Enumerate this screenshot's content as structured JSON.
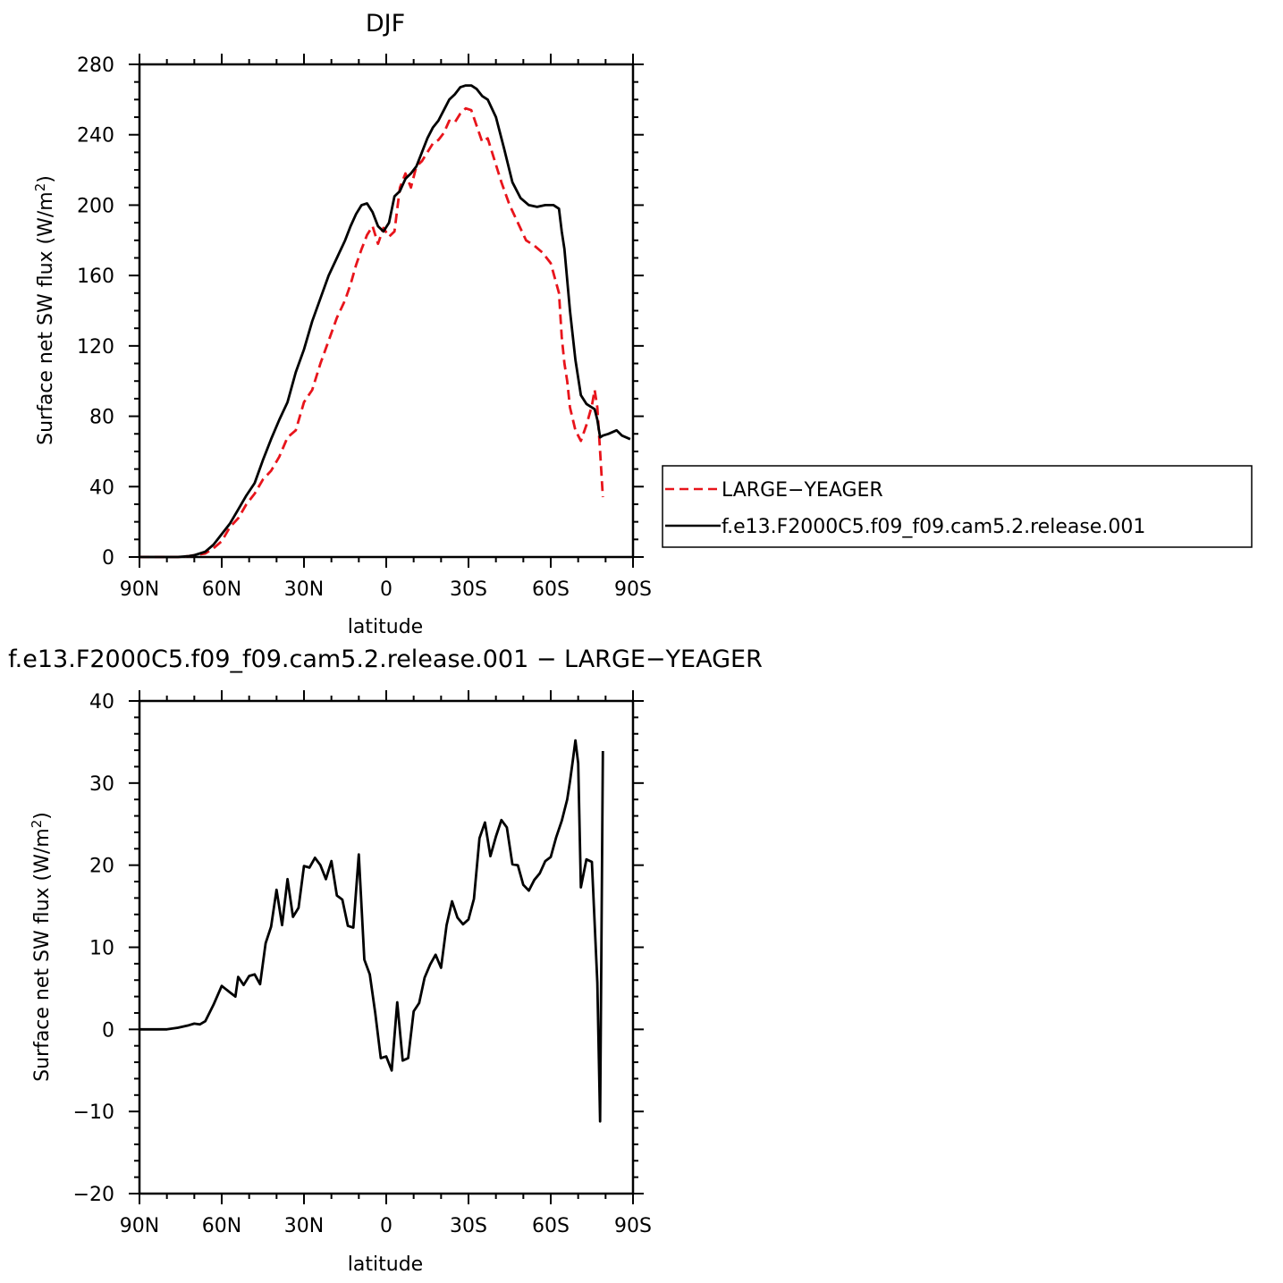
{
  "chart_data": [
    {
      "type": "line",
      "title": "DJF",
      "xlabel": "latitude",
      "ylabel": "Surface net SW flux (W/m",
      "ylabel_sup": "2",
      "ylabel_close": ")",
      "xlim": [
        -90,
        90
      ],
      "ylim": [
        0,
        280
      ],
      "xticks": [
        -90,
        -60,
        -30,
        0,
        30,
        60,
        90
      ],
      "xticklabels": [
        "90N",
        "60N",
        "30N",
        "0",
        "30S",
        "60S",
        "90S"
      ],
      "yticks": [
        0,
        40,
        80,
        120,
        160,
        200,
        240,
        280
      ],
      "yticklabels": [
        "0",
        "40",
        "80",
        "120",
        "160",
        "200",
        "240",
        "280"
      ],
      "legend": "right",
      "series": [
        {
          "name": "LARGE−YEAGER",
          "color": "#e8141b",
          "dash": "dashed",
          "x": [
            -90,
            -85,
            -80,
            -76,
            -72,
            -70,
            -66,
            -63,
            -60,
            -57,
            -54,
            -51,
            -48,
            -45,
            -42,
            -39,
            -36,
            -33,
            -30,
            -27,
            -24,
            -21,
            -18,
            -15,
            -13,
            -11,
            -9,
            -7,
            -5,
            -3,
            -1,
            1,
            3,
            5,
            7,
            9,
            11,
            13,
            15,
            17,
            19,
            21,
            23,
            25,
            27,
            29,
            31,
            33,
            35,
            37,
            39,
            42,
            45,
            48,
            51,
            54,
            57,
            60,
            63,
            64,
            65,
            66,
            67,
            69,
            71,
            73,
            75,
            76,
            77,
            78,
            79
          ],
          "y": [
            0,
            0,
            0,
            0,
            0.5,
            1,
            2,
            5,
            9,
            17,
            22,
            30,
            36,
            44,
            49,
            57,
            68,
            72,
            88,
            95,
            110,
            123,
            136,
            146,
            155,
            166,
            175,
            183,
            188,
            178,
            187,
            182,
            185,
            210,
            218,
            210,
            222,
            225,
            230,
            235,
            237,
            241,
            248,
            247,
            252,
            255,
            254,
            245,
            236,
            238,
            228,
            213,
            200,
            190,
            180,
            177,
            173,
            167,
            150,
            125,
            110,
            100,
            85,
            72,
            66,
            75,
            86,
            95,
            85,
            60,
            34
          ]
        },
        {
          "name": "f.e13.F2000C5.f09_f09.cam5.2.release.001",
          "color": "#000000",
          "dash": "solid",
          "x": [
            -90,
            -85,
            -80,
            -76,
            -72,
            -70,
            -66,
            -63,
            -60,
            -57,
            -54,
            -51,
            -48,
            -45,
            -42,
            -39,
            -36,
            -33,
            -30,
            -27,
            -24,
            -21,
            -18,
            -15,
            -13,
            -11,
            -9,
            -7,
            -5,
            -3,
            -1,
            1,
            3,
            5,
            7,
            9,
            11,
            13,
            15,
            17,
            19,
            21,
            23,
            25,
            27,
            29,
            31,
            33,
            35,
            37,
            40,
            43,
            46,
            49,
            52,
            55,
            58,
            61,
            63,
            64,
            65,
            67,
            69,
            71,
            73,
            75,
            76,
            77,
            78,
            79,
            81,
            84,
            86,
            89
          ],
          "y": [
            0,
            0,
            0,
            0,
            0.5,
            1,
            3,
            7,
            13,
            19,
            27,
            35,
            42,
            55,
            67,
            78,
            88,
            105,
            118,
            134,
            147,
            160,
            170,
            180,
            188,
            195,
            200,
            201,
            196,
            188,
            185,
            190,
            205,
            208,
            215,
            218,
            222,
            230,
            238,
            244,
            248,
            254,
            260,
            263,
            267,
            268,
            268,
            266,
            262,
            260,
            250,
            232,
            213,
            204,
            200,
            199,
            200,
            200,
            198,
            185,
            175,
            140,
            112,
            92,
            87,
            85,
            84,
            78,
            68,
            69,
            70,
            72,
            69,
            67
          ]
        }
      ]
    },
    {
      "type": "line",
      "title": "f.e13.F2000C5.f09_f09.cam5.2.release.001 − LARGE−YEAGER",
      "xlabel": "latitude",
      "ylabel": "Surface net SW flux (W/m",
      "ylabel_sup": "2",
      "ylabel_close": ")",
      "xlim": [
        -90,
        90
      ],
      "ylim": [
        -20,
        40
      ],
      "xticks": [
        -90,
        -60,
        -30,
        0,
        30,
        60,
        90
      ],
      "xticklabels": [
        "90N",
        "60N",
        "30N",
        "0",
        "30S",
        "60S",
        "90S"
      ],
      "yticks": [
        -20,
        -10,
        0,
        10,
        20,
        30,
        40
      ],
      "yticklabels": [
        "−20",
        "−10",
        "0",
        "10",
        "20",
        "30",
        "40"
      ],
      "series": [
        {
          "color": "#000000",
          "dash": "solid",
          "x": [
            -90,
            -85,
            -80,
            -76,
            -72,
            -70,
            -68,
            -66,
            -63,
            -60,
            -57,
            -55,
            -54,
            -52,
            -50,
            -48,
            -46,
            -44,
            -42,
            -40,
            -38,
            -36,
            -34,
            -32,
            -30,
            -28,
            -26,
            -24,
            -22,
            -20,
            -18,
            -16,
            -14,
            -12,
            -10,
            -8,
            -6,
            -4,
            -2,
            0,
            2,
            4,
            6,
            8,
            10,
            12,
            14,
            16,
            18,
            20,
            22,
            24,
            26,
            28,
            30,
            32,
            34,
            36,
            38,
            40,
            42,
            44,
            46,
            48,
            50,
            52,
            54,
            56,
            58,
            60,
            62,
            64,
            66,
            67,
            68,
            69,
            70,
            71,
            73,
            75,
            77,
            78,
            79
          ],
          "y": [
            0,
            0,
            0,
            0.2,
            0.5,
            0.7,
            0.6,
            1,
            3,
            5.3,
            4.5,
            4,
            6.4,
            5.4,
            6.5,
            6.7,
            5.5,
            10.5,
            12.5,
            17,
            12.7,
            18.3,
            13.7,
            14.8,
            19.9,
            19.7,
            20.9,
            20,
            18.3,
            20.5,
            16.3,
            15.8,
            12.6,
            12.4,
            21.3,
            8.5,
            6.7,
            2,
            -3.5,
            -3.3,
            -5,
            3.3,
            -3.8,
            -3.5,
            2.2,
            3.2,
            6.3,
            7.9,
            9.1,
            7.5,
            12.7,
            15.6,
            13.6,
            12.8,
            13.4,
            15.9,
            23.3,
            25.2,
            21.1,
            23.5,
            25.5,
            24.6,
            20.1,
            20,
            17.6,
            16.9,
            18.2,
            19,
            20.5,
            21,
            23.4,
            25.4,
            28,
            30.2,
            32.6,
            35.2,
            32.4,
            17.3,
            20.7,
            20.4,
            5.7,
            -11.2,
            33.9
          ]
        }
      ]
    }
  ]
}
